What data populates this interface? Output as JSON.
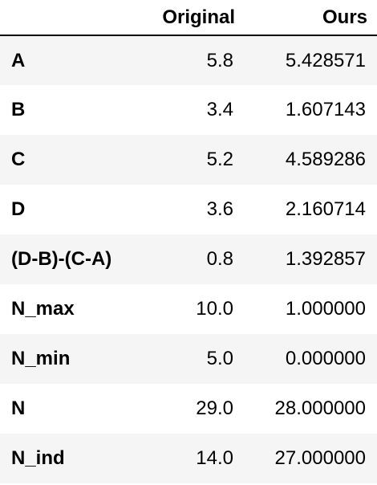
{
  "table": {
    "columns": [
      "",
      "Original",
      "Ours"
    ],
    "rows": [
      {
        "index": "A",
        "original": "5.8",
        "ours": "5.428571"
      },
      {
        "index": "B",
        "original": "3.4",
        "ours": "1.607143"
      },
      {
        "index": "C",
        "original": "5.2",
        "ours": "4.589286"
      },
      {
        "index": "D",
        "original": "3.6",
        "ours": "2.160714"
      },
      {
        "index": "(D-B)-(C-A)",
        "original": "0.8",
        "ours": "1.392857"
      },
      {
        "index": "N_max",
        "original": "10.0",
        "ours": "1.000000"
      },
      {
        "index": "N_min",
        "original": "5.0",
        "ours": "0.000000"
      },
      {
        "index": "N",
        "original": "29.0",
        "ours": "28.000000"
      },
      {
        "index": "N_ind",
        "original": "14.0",
        "ours": "27.000000"
      }
    ]
  }
}
